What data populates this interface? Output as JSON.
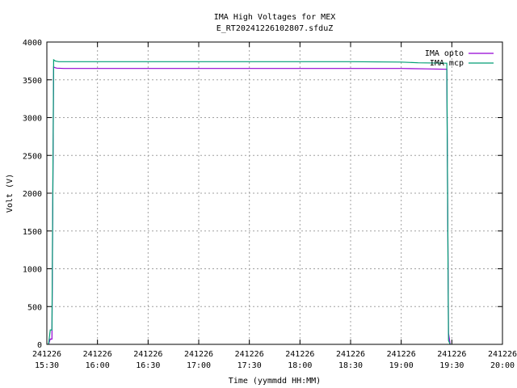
{
  "chart_data": {
    "type": "line",
    "title": "IMA High Voltages for MEX",
    "subtitle": "E_RT20241226102807.sfduZ",
    "xlabel": "Time (yymmdd HH:MM)",
    "ylabel": "Volt (V)",
    "xlim": [
      "241226 15:30",
      "241226 20:00"
    ],
    "ylim": [
      0,
      4000
    ],
    "x_ticks": [
      {
        "date": "241226",
        "time": "15:30"
      },
      {
        "date": "241226",
        "time": "16:00"
      },
      {
        "date": "241226",
        "time": "16:30"
      },
      {
        "date": "241226",
        "time": "17:00"
      },
      {
        "date": "241226",
        "time": "17:30"
      },
      {
        "date": "241226",
        "time": "18:00"
      },
      {
        "date": "241226",
        "time": "18:30"
      },
      {
        "date": "241226",
        "time": "19:00"
      },
      {
        "date": "241226",
        "time": "19:30"
      },
      {
        "date": "241226",
        "time": "20:00"
      }
    ],
    "y_ticks": [
      0,
      500,
      1000,
      1500,
      2000,
      2500,
      3000,
      3500,
      4000
    ],
    "grid": true,
    "legend_position": "top-right",
    "series": [
      {
        "name": "IMA opto",
        "color": "#9400d3",
        "x": [
          "241226 15:31",
          "241226 15:32",
          "241226 15:33",
          "241226 15:34",
          "241226 15:34",
          "241226 15:35",
          "241226 15:36",
          "241226 15:40",
          "241226 16:00",
          "241226 16:30",
          "241226 17:00",
          "241226 17:30",
          "241226 18:00",
          "241226 18:30",
          "241226 19:00",
          "241226 19:15",
          "241226 19:27",
          "241226 19:28",
          "241226 19:29"
        ],
        "y": [
          0,
          70,
          70,
          3650,
          3670,
          3660,
          3655,
          3650,
          3650,
          3650,
          3650,
          3650,
          3650,
          3650,
          3650,
          3645,
          3640,
          150,
          0
        ]
      },
      {
        "name": "IMA mcp",
        "color": "#009e73",
        "x": [
          "241226 15:31",
          "241226 15:32",
          "241226 15:33",
          "241226 15:34",
          "241226 15:34",
          "241226 15:35",
          "241226 15:37",
          "241226 16:00",
          "241226 16:30",
          "241226 17:00",
          "241226 17:30",
          "241226 18:00",
          "241226 18:30",
          "241226 19:00",
          "241226 19:10",
          "241226 19:27",
          "241226 19:28",
          "241226 19:29"
        ],
        "y": [
          0,
          190,
          190,
          3760,
          3765,
          3750,
          3740,
          3740,
          3740,
          3740,
          3740,
          3740,
          3740,
          3735,
          3725,
          3720,
          50,
          0
        ]
      }
    ]
  }
}
